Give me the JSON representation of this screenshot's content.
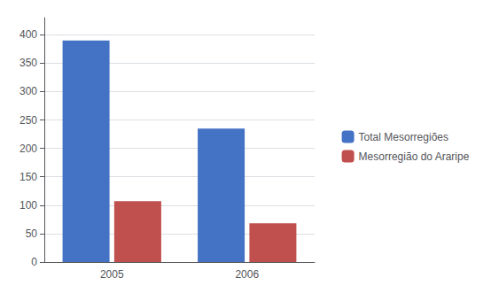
{
  "chart_data": {
    "type": "bar",
    "categories": [
      "2005",
      "2006"
    ],
    "series": [
      {
        "name": "Total Mesorregiões",
        "color": "#4472C4",
        "values": [
          390,
          235
        ]
      },
      {
        "name": "Mesorregião do Araripe",
        "color": "#C0504D",
        "values": [
          107,
          68
        ]
      }
    ],
    "ylim": [
      0,
      430
    ],
    "yticks": [
      0,
      50,
      100,
      150,
      200,
      250,
      300,
      350,
      400
    ],
    "grid": true,
    "legend": "right"
  }
}
